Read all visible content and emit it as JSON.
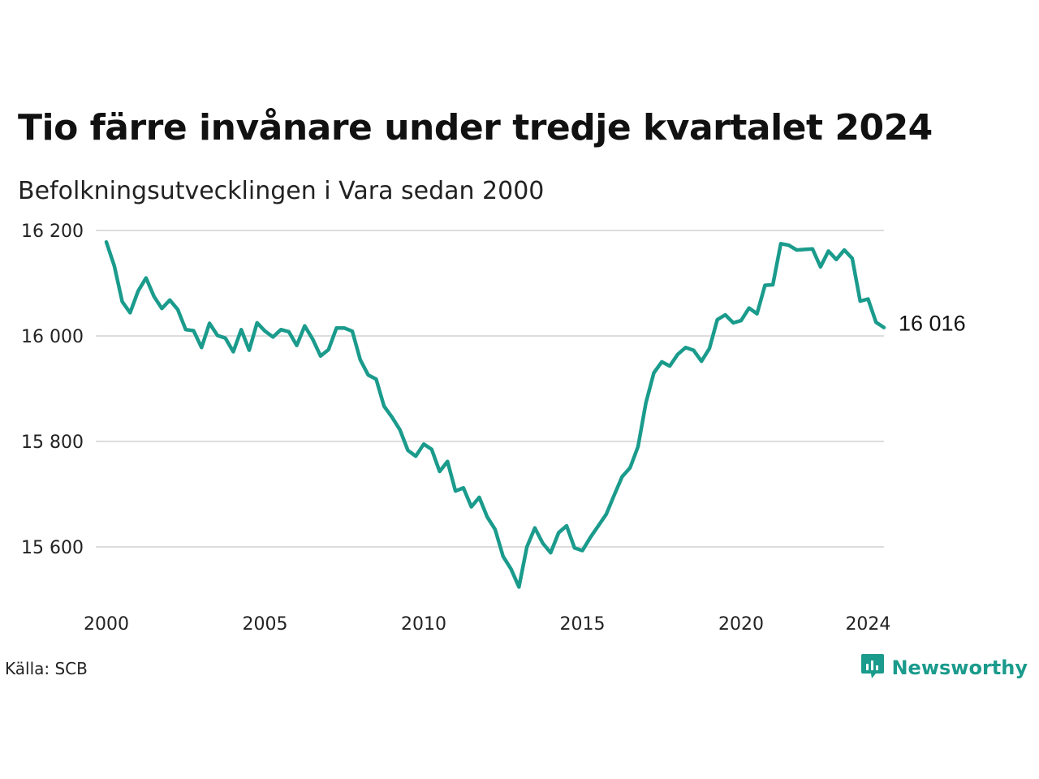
{
  "title": "Tio färre invånare under tredje kvartalet 2024",
  "subtitle": "Befolkningsutvecklingen i Vara sedan 2000",
  "source": "Källa: SCB",
  "brand": "Newsworthy",
  "colors": {
    "line": "#1a9b8c",
    "grid": "#dddddd",
    "brand": "#1a9b8c"
  },
  "chart_data": {
    "type": "line",
    "x_unit": "year",
    "ylim": [
      15520,
      16200
    ],
    "xlim": [
      2000,
      2024.5
    ],
    "yticks": [
      {
        "value": 16200,
        "label": "16 200"
      },
      {
        "value": 16000,
        "label": "16 000"
      },
      {
        "value": 15800,
        "label": "15 800"
      },
      {
        "value": 15600,
        "label": "15 600"
      }
    ],
    "xticks": [
      {
        "value": 2000,
        "label": "2000"
      },
      {
        "value": 2005,
        "label": "2005"
      },
      {
        "value": 2010,
        "label": "2010"
      },
      {
        "value": 2015,
        "label": "2015"
      },
      {
        "value": 2020,
        "label": "2020"
      },
      {
        "value": 2024,
        "label": "2024"
      }
    ],
    "grid": true,
    "end_label": "16 016",
    "x": [
      2000.0,
      2000.25,
      2000.5,
      2000.75,
      2001.0,
      2001.25,
      2001.5,
      2001.75,
      2002.0,
      2002.25,
      2002.5,
      2002.75,
      2003.0,
      2003.25,
      2003.5,
      2003.75,
      2004.0,
      2004.25,
      2004.5,
      2004.75,
      2005.0,
      2005.25,
      2005.5,
      2005.75,
      2006.0,
      2006.25,
      2006.5,
      2006.75,
      2007.0,
      2007.25,
      2007.5,
      2007.75,
      2008.0,
      2008.25,
      2008.5,
      2008.75,
      2009.0,
      2009.25,
      2009.5,
      2009.75,
      2010.0,
      2010.25,
      2010.5,
      2010.75,
      2011.0,
      2011.25,
      2011.5,
      2011.75,
      2012.0,
      2012.25,
      2012.5,
      2012.75,
      2013.0,
      2013.25,
      2013.5,
      2013.75,
      2014.0,
      2014.25,
      2014.5,
      2014.75,
      2015.0,
      2015.25,
      2015.5,
      2015.75,
      2016.0,
      2016.25,
      2016.5,
      2016.75,
      2017.0,
      2017.25,
      2017.5,
      2017.75,
      2018.0,
      2018.25,
      2018.5,
      2018.75,
      2019.0,
      2019.25,
      2019.5,
      2019.75,
      2020.0,
      2020.25,
      2020.5,
      2020.75,
      2021.0,
      2021.25,
      2021.5,
      2021.75,
      2022.0,
      2022.25,
      2022.5,
      2022.75,
      2023.0,
      2023.25,
      2023.5,
      2023.75,
      2024.0,
      2024.25,
      2024.5
    ],
    "y": [
      16178,
      16133,
      16065,
      16044,
      16085,
      16110,
      16075,
      16052,
      16068,
      16050,
      16012,
      16010,
      15978,
      16024,
      16001,
      15996,
      15970,
      16012,
      15973,
      16025,
      16009,
      15998,
      16012,
      16008,
      15982,
      16019,
      15994,
      15962,
      15974,
      16015,
      16015,
      16009,
      15955,
      15926,
      15918,
      15867,
      15846,
      15822,
      15783,
      15772,
      15795,
      15785,
      15743,
      15762,
      15706,
      15712,
      15676,
      15694,
      15657,
      15633,
      15582,
      15558,
      15524,
      15600,
      15636,
      15607,
      15589,
      15627,
      15640,
      15598,
      15593,
      15618,
      15640,
      15662,
      15698,
      15733,
      15750,
      15790,
      15873,
      15930,
      15951,
      15943,
      15965,
      15978,
      15973,
      15952,
      15976,
      16031,
      16040,
      16025,
      16029,
      16053,
      16042,
      16096,
      16097,
      16175,
      16172,
      16163,
      16164,
      16165,
      16131,
      16161,
      16145,
      16163,
      16147,
      16066,
      16070,
      16026,
      16016
    ]
  }
}
